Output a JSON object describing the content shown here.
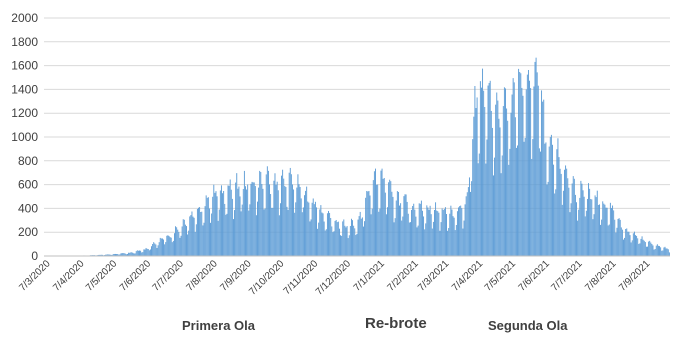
{
  "chart_data": {
    "type": "bar",
    "title": "",
    "xlabel": "",
    "ylabel": "",
    "ylim": [
      0,
      2000
    ],
    "yticks": [
      0,
      200,
      400,
      600,
      800,
      1000,
      1200,
      1400,
      1600,
      1800,
      2000
    ],
    "xtick_labels": [
      "7/3/2020",
      "7/4/2020",
      "7/5/2020",
      "7/6/2020",
      "7/7/2020",
      "7/8/2020",
      "7/9/2020",
      "7/10/2020",
      "7/11/2020",
      "7/12/2020",
      "7/1/2021",
      "7/2/2021",
      "7/3/2021",
      "7/4/2021",
      "7/5/2021",
      "7/6/2021",
      "7/7/2021",
      "7/8/2021",
      "7/9/2021"
    ],
    "grid": true,
    "color": "#5b9bd5",
    "frequency": "daily",
    "x_start": "2020-03-07",
    "x_end": "2021-09-30",
    "series": [
      {
        "envelope_dates": [
          "2020-03-07",
          "2020-04-15",
          "2020-05-07",
          "2020-05-25",
          "2020-06-07",
          "2020-06-20",
          "2020-07-01",
          "2020-07-15",
          "2020-07-25",
          "2020-08-07",
          "2020-08-20",
          "2020-09-05",
          "2020-09-20",
          "2020-10-07",
          "2020-10-20",
          "2020-11-07",
          "2020-11-20",
          "2020-12-07",
          "2020-12-20",
          "2021-01-01",
          "2021-01-10",
          "2021-01-20",
          "2021-02-07",
          "2021-02-20",
          "2021-03-07",
          "2021-03-20",
          "2021-03-28",
          "2021-04-07",
          "2021-04-15",
          "2021-04-25",
          "2021-05-07",
          "2021-05-15",
          "2021-05-25",
          "2021-06-01",
          "2021-06-10",
          "2021-06-20",
          "2021-07-07",
          "2021-07-20",
          "2021-08-07",
          "2021-08-20",
          "2021-09-07",
          "2021-09-20",
          "2021-09-30"
        ],
        "envelope_values": [
          0,
          5,
          15,
          30,
          60,
          140,
          200,
          330,
          420,
          560,
          590,
          660,
          690,
          680,
          700,
          520,
          360,
          280,
          320,
          680,
          720,
          560,
          450,
          440,
          420,
          400,
          500,
          1550,
          1480,
          1300,
          1350,
          1650,
          1550,
          1700,
          1000,
          900,
          600,
          550,
          450,
          250,
          140,
          90,
          60
        ]
      }
    ]
  },
  "annotations": {
    "first_wave": "Primera Ola",
    "rebound": "Re-brote",
    "second_wave": "Segunda Ola"
  }
}
